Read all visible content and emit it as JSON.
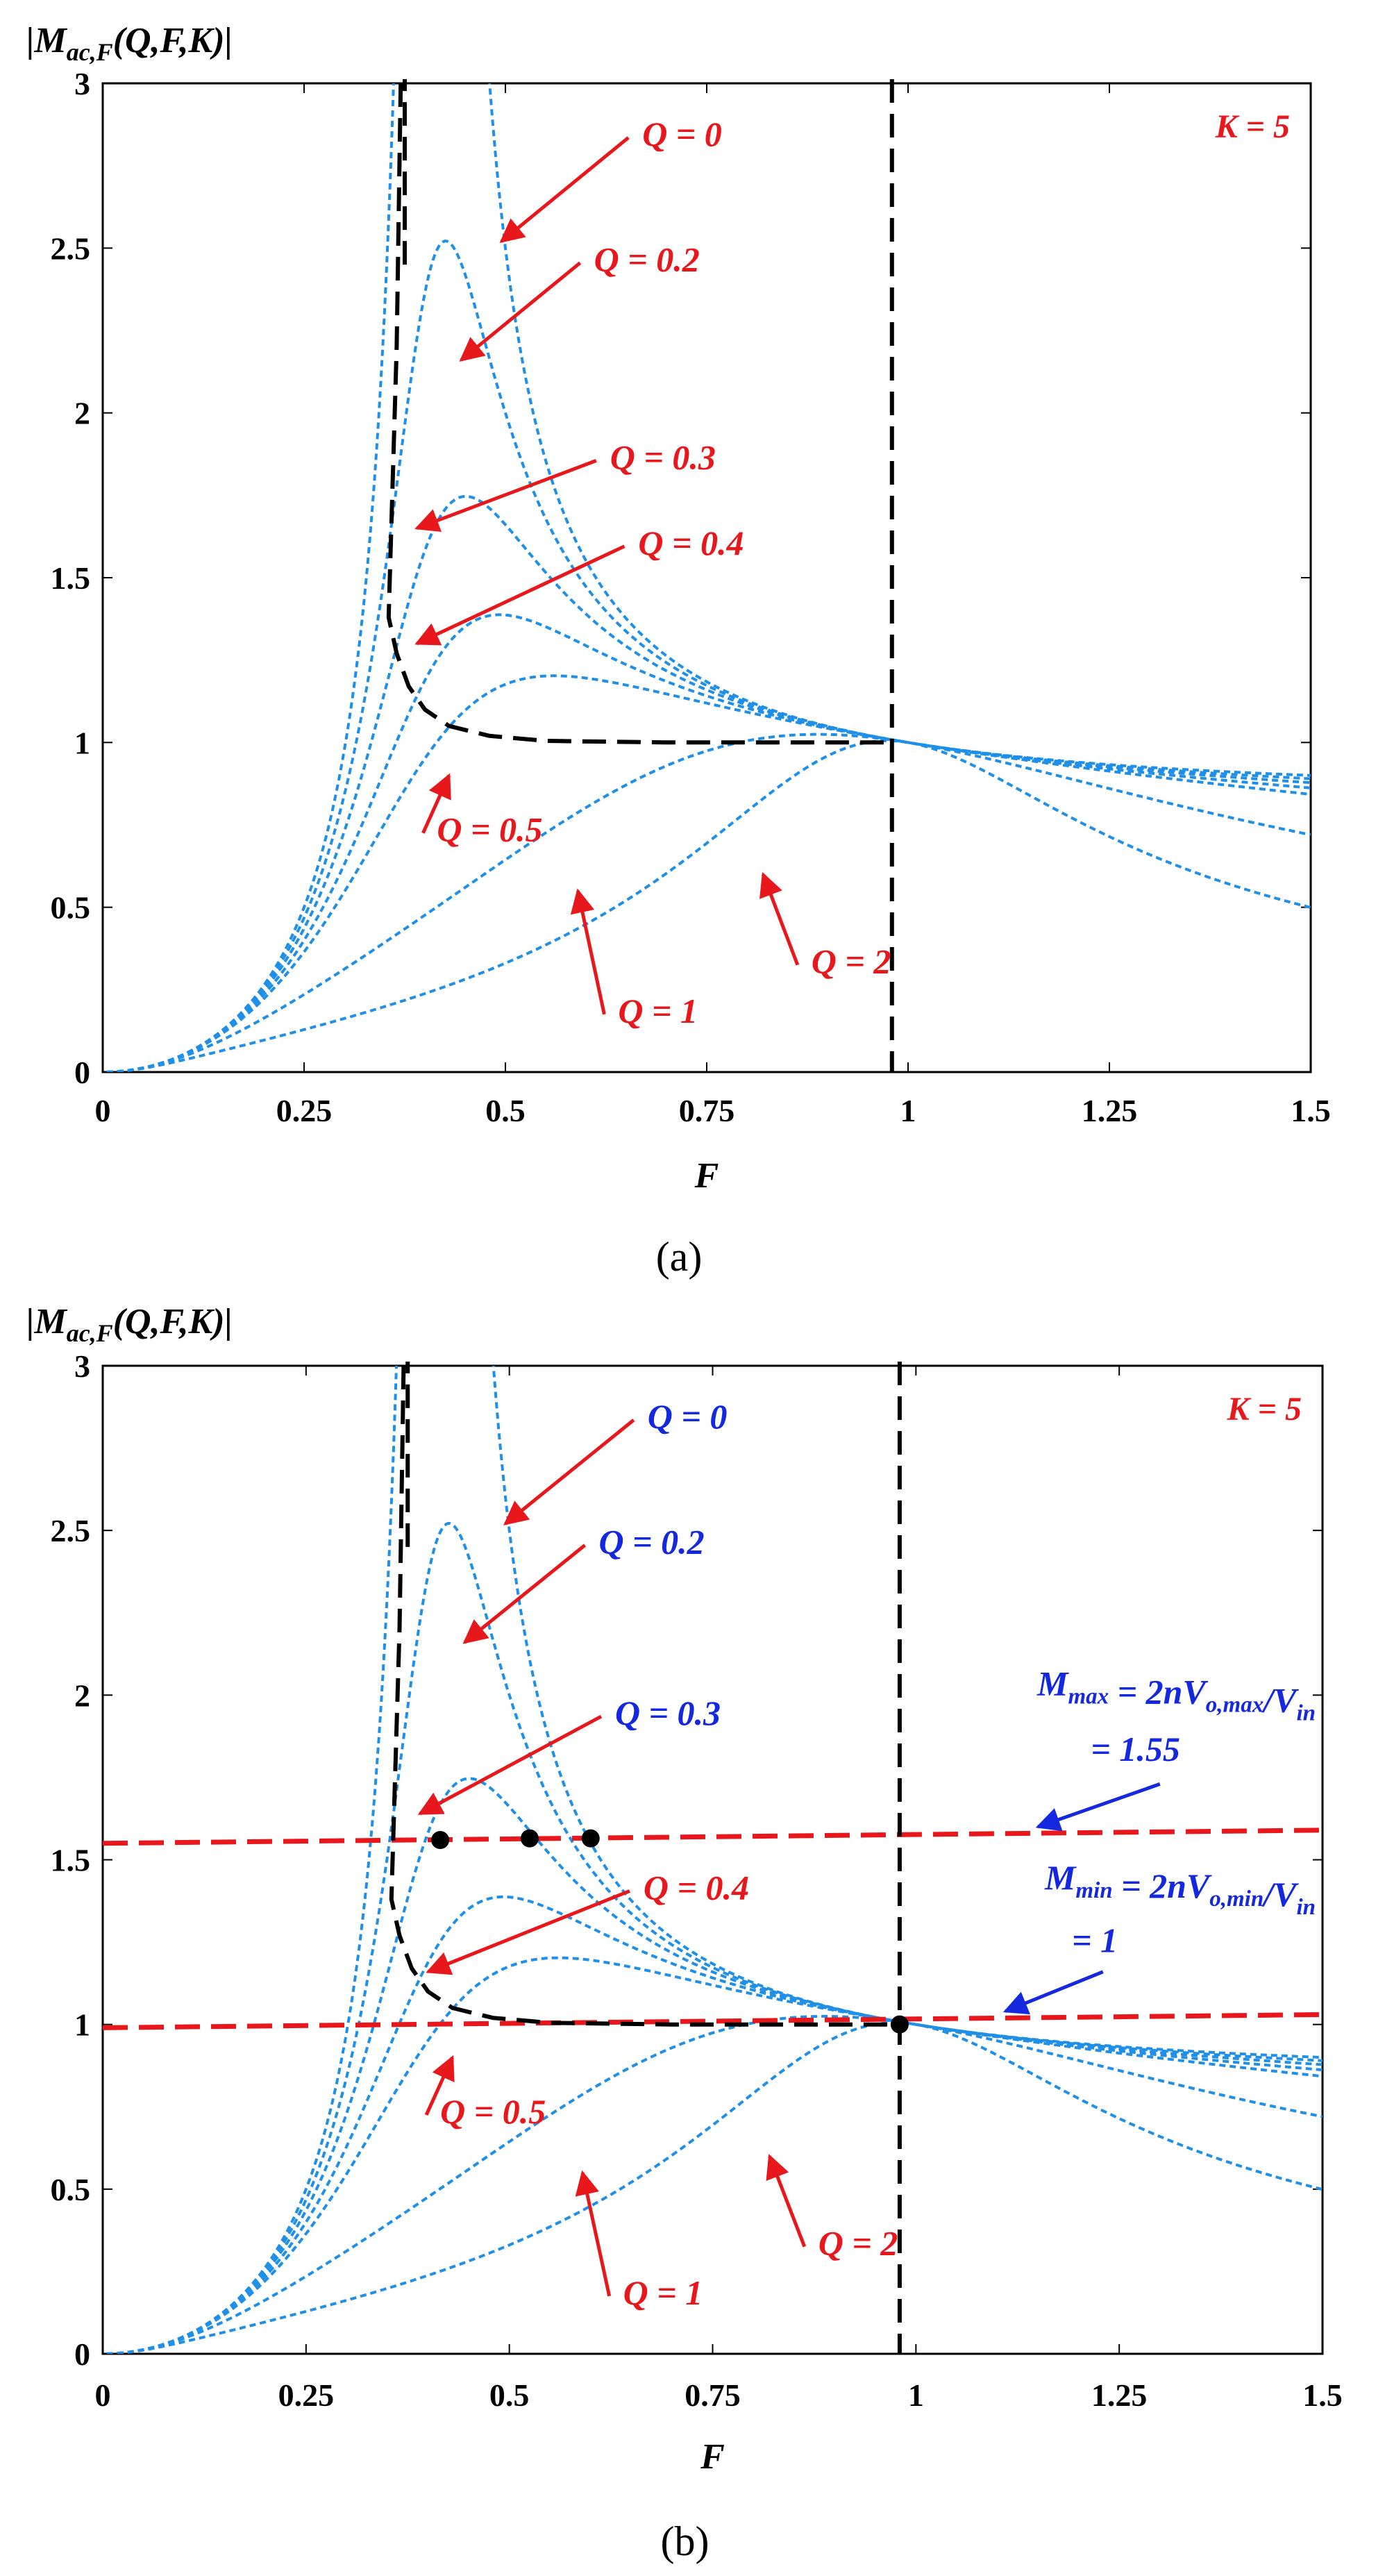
{
  "chart_data": [
    {
      "type": "line",
      "panel_caption": "(a)",
      "ylabel": "|M_ac,F(Q,F,K)|",
      "ylabel_parts": {
        "main": "|M",
        "sub": "ac,F",
        "args": "(Q,F,K)|"
      },
      "xlabel": "F",
      "xlim": [
        0,
        1.5
      ],
      "ylim": [
        0,
        3
      ],
      "x_ticks": [
        0,
        0.25,
        0.5,
        0.75,
        1,
        1.25,
        1.5
      ],
      "x_tick_labels": [
        "0",
        "0.25",
        "0.5",
        "0.75",
        "1",
        "1.25",
        "1.5"
      ],
      "y_ticks": [
        0,
        0.5,
        1,
        1.5,
        2,
        2.5,
        3
      ],
      "y_tick_labels": [
        "0",
        "0.5",
        "1",
        "1.5",
        "2",
        "2.5",
        "3"
      ],
      "K": 5,
      "k_label": "K = 5",
      "k_label_color": "#e8171b",
      "series_color": "#1f8fe8",
      "boundary_color": "#000000",
      "series": [
        {
          "name": "Q = 0",
          "Q": 0
        },
        {
          "name": "Q = 0.2",
          "Q": 0.2
        },
        {
          "name": "Q = 0.3",
          "Q": 0.3
        },
        {
          "name": "Q = 0.4",
          "Q": 0.4
        },
        {
          "name": "Q = 0.5",
          "Q": 0.5
        },
        {
          "name": "Q = 1",
          "Q": 1
        },
        {
          "name": "Q = 2",
          "Q": 2
        }
      ],
      "vertical_lines": [
        {
          "name": "peak-gain boundary",
          "x": 0.375
        },
        {
          "name": "resonant frequency",
          "x": 0.98
        }
      ],
      "horizontal_lines": [],
      "boundary_curve": [
        [
          0.355,
          1.38
        ],
        [
          0.365,
          1.27
        ],
        [
          0.38,
          1.17
        ],
        [
          0.4,
          1.1
        ],
        [
          0.43,
          1.05
        ],
        [
          0.48,
          1.02
        ],
        [
          0.55,
          1.005
        ],
        [
          0.7,
          1.0
        ],
        [
          0.98,
          1.0
        ]
      ],
      "boundary_upper": [
        [
          0.355,
          1.38
        ],
        [
          0.365,
          2.2
        ],
        [
          0.37,
          3.0
        ]
      ],
      "markers": [],
      "annotations": [
        {
          "text": "Q = 0",
          "text_x": 0.67,
          "text_y": 2.81,
          "arrow_to": [
            0.495,
            2.52
          ],
          "text_color": "#e8171b",
          "arrow_color": "#e8171b"
        },
        {
          "text": "Q = 0.2",
          "text_x": 0.61,
          "text_y": 2.43,
          "arrow_to": [
            0.445,
            2.16
          ],
          "text_color": "#e8171b",
          "arrow_color": "#e8171b"
        },
        {
          "text": "Q = 0.3",
          "text_x": 0.63,
          "text_y": 1.83,
          "arrow_to": [
            0.39,
            1.65
          ],
          "text_color": "#e8171b",
          "arrow_color": "#e8171b"
        },
        {
          "text": "Q = 0.4",
          "text_x": 0.665,
          "text_y": 1.57,
          "arrow_to": [
            0.39,
            1.3
          ],
          "text_color": "#e8171b",
          "arrow_color": "#e8171b"
        },
        {
          "text": "Q = 0.5",
          "text_x": 0.415,
          "text_y": 0.7,
          "arrow_to": [
            0.43,
            0.9
          ],
          "text_color": "#e8171b",
          "arrow_color": "#e8171b"
        },
        {
          "text": "Q = 1",
          "text_x": 0.64,
          "text_y": 0.15,
          "arrow_to": [
            0.59,
            0.55
          ],
          "text_color": "#e8171b",
          "arrow_color": "#e8171b"
        },
        {
          "text": "Q = 2",
          "text_x": 0.88,
          "text_y": 0.3,
          "arrow_to": [
            0.82,
            0.6
          ],
          "text_color": "#e8171b",
          "arrow_color": "#e8171b"
        }
      ]
    },
    {
      "type": "line",
      "panel_caption": "(b)",
      "ylabel": "|M_ac,F(Q,F,K)|",
      "ylabel_parts": {
        "main": "|M",
        "sub": "ac,F",
        "args": "(Q,F,K)|"
      },
      "xlabel": "F",
      "xlim": [
        0,
        1.5
      ],
      "ylim": [
        0,
        3
      ],
      "x_ticks": [
        0,
        0.25,
        0.5,
        0.75,
        1,
        1.25,
        1.5
      ],
      "x_tick_labels": [
        "0",
        "0.25",
        "0.5",
        "0.75",
        "1",
        "1.25",
        "1.5"
      ],
      "y_ticks": [
        0,
        0.5,
        1,
        1.5,
        2,
        2.5,
        3
      ],
      "y_tick_labels": [
        "0",
        "0.5",
        "1",
        "1.5",
        "2",
        "2.5",
        "3"
      ],
      "K": 5,
      "k_label": "K = 5",
      "k_label_color": "#e8171b",
      "series_color": "#1f8fe8",
      "boundary_color": "#000000",
      "series": [
        {
          "name": "Q = 0",
          "Q": 0
        },
        {
          "name": "Q = 0.2",
          "Q": 0.2
        },
        {
          "name": "Q = 0.3",
          "Q": 0.3
        },
        {
          "name": "Q = 0.4",
          "Q": 0.4
        },
        {
          "name": "Q = 0.5",
          "Q": 0.5
        },
        {
          "name": "Q = 1",
          "Q": 1
        },
        {
          "name": "Q = 2",
          "Q": 2
        }
      ],
      "vertical_lines": [
        {
          "name": "peak-gain boundary",
          "x": 0.375
        },
        {
          "name": "resonant frequency",
          "x": 0.98
        }
      ],
      "horizontal_lines": [
        {
          "name": "M_max",
          "y_start": 1.55,
          "y_end": 1.59,
          "color": "#e8171b"
        },
        {
          "name": "M_min",
          "y_start": 0.99,
          "y_end": 1.03,
          "color": "#e8171b"
        }
      ],
      "boundary_curve": [
        [
          0.355,
          1.38
        ],
        [
          0.365,
          1.27
        ],
        [
          0.38,
          1.17
        ],
        [
          0.4,
          1.1
        ],
        [
          0.43,
          1.05
        ],
        [
          0.48,
          1.02
        ],
        [
          0.55,
          1.005
        ],
        [
          0.7,
          1.0
        ],
        [
          0.98,
          1.0
        ]
      ],
      "boundary_upper": [
        [
          0.355,
          1.38
        ],
        [
          0.365,
          2.2
        ],
        [
          0.37,
          3.0
        ]
      ],
      "markers": [
        [
          0.415,
          1.56
        ],
        [
          0.525,
          1.565
        ],
        [
          0.6,
          1.565
        ],
        [
          0.98,
          1.0
        ]
      ],
      "mmax_label": {
        "line1": "M_max = 2nV_o,max/V_in",
        "line2": "= 1.55"
      },
      "mmin_label": {
        "line1": "M_min = 2nV_o,min/V_in",
        "line2": "= 1"
      },
      "annotations": [
        {
          "text": "Q = 0",
          "text_x": 0.67,
          "text_y": 2.81,
          "arrow_to": [
            0.495,
            2.52
          ],
          "text_color": "#1428e0",
          "arrow_color": "#e8171b"
        },
        {
          "text": "Q = 0.2",
          "text_x": 0.61,
          "text_y": 2.43,
          "arrow_to": [
            0.445,
            2.16
          ],
          "text_color": "#1428e0",
          "arrow_color": "#e8171b"
        },
        {
          "text": "Q = 0.3",
          "text_x": 0.63,
          "text_y": 1.91,
          "arrow_to": [
            0.39,
            1.64
          ],
          "text_color": "#1428e0",
          "arrow_color": "#e8171b"
        },
        {
          "text": "Q = 0.4",
          "text_x": 0.665,
          "text_y": 1.38,
          "arrow_to": [
            0.4,
            1.16
          ],
          "text_color": "#e8171b",
          "arrow_color": "#e8171b"
        },
        {
          "text": "Q = 0.5",
          "text_x": 0.415,
          "text_y": 0.7,
          "arrow_to": [
            0.43,
            0.9
          ],
          "text_color": "#e8171b",
          "arrow_color": "#e8171b"
        },
        {
          "text": "Q = 1",
          "text_x": 0.64,
          "text_y": 0.15,
          "arrow_to": [
            0.59,
            0.55
          ],
          "text_color": "#e8171b",
          "arrow_color": "#e8171b"
        },
        {
          "text": "Q = 2",
          "text_x": 0.88,
          "text_y": 0.3,
          "arrow_to": [
            0.82,
            0.6
          ],
          "text_color": "#e8171b",
          "arrow_color": "#e8171b"
        }
      ],
      "label_color": "#1428e0",
      "label_arrow_color": "#1428e0"
    }
  ]
}
